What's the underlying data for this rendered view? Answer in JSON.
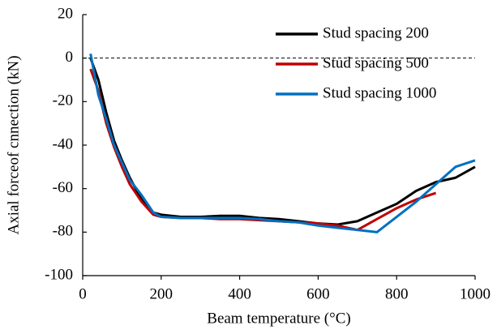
{
  "chart_data": {
    "type": "line",
    "x_label": "Beam temperature (°C)",
    "y_label": "Axial forceof cnnection (kN)",
    "x": [
      20,
      40,
      60,
      80,
      100,
      120,
      150,
      180,
      200,
      250,
      300,
      350,
      400,
      450,
      500,
      550,
      600,
      650,
      700,
      750,
      800,
      850,
      900,
      950,
      1000
    ],
    "series": [
      {
        "name": "Stud spacing 200",
        "color": "#000000",
        "values": [
          0,
          -10,
          -25,
          -38,
          -47,
          -55,
          -65,
          -71,
          -72,
          -73,
          -73,
          -72.5,
          -72.5,
          -73.5,
          -74,
          -75,
          -76,
          -76.5,
          -75,
          -71,
          -67,
          -61,
          -57,
          -55,
          -50
        ]
      },
      {
        "name": "Stud spacing 500",
        "color": "#c00000",
        "values": [
          -5,
          -15,
          -30,
          -41,
          -50,
          -58,
          -66,
          -72,
          -73,
          -73.5,
          -73.5,
          -74,
          -74,
          -74.5,
          -75,
          -75.5,
          -76,
          -77,
          -79,
          -74,
          -69,
          -65,
          -62,
          null,
          null
        ]
      },
      {
        "name": "Stud spacing 1000",
        "color": "#0070c0",
        "values": [
          2,
          -17,
          -28,
          -40,
          -48,
          -56,
          -63,
          -71,
          -73,
          -73.5,
          -73.5,
          -73.5,
          -73.5,
          -74,
          -75,
          -75.5,
          -77,
          -78,
          -79,
          -80,
          -73,
          -66,
          -58,
          -50,
          -47
        ]
      }
    ],
    "xlim": [
      0,
      1000
    ],
    "xticks": [
      0,
      200,
      400,
      600,
      800,
      1000
    ],
    "ylim": [
      -100,
      20
    ],
    "yticks": [
      -100,
      -80,
      -60,
      -40,
      -20,
      0,
      20
    ],
    "reference_line": 0,
    "legend": "top-right"
  }
}
